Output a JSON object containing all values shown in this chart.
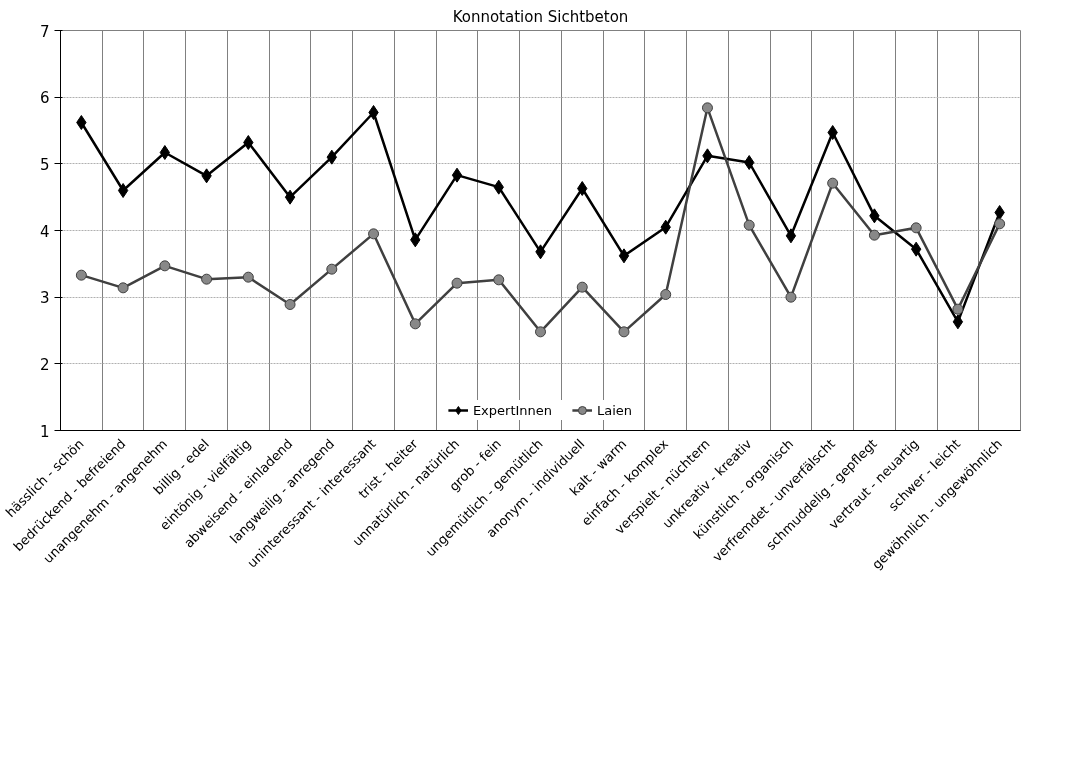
{
  "chart_data": {
    "type": "line",
    "title": "Konnotation Sichtbeton",
    "categories": [
      "hässlich - schön",
      "bedrückend - befreiend",
      "unangenehm - angenehm",
      "billig - edel",
      "eintönig - vielfältig",
      "abweisend - einladend",
      "langweilig - anregend",
      "uninteressant - interessant",
      "trist - heiter",
      "unnatürlich - natürlich",
      "grob - fein",
      "ungemütlich - gemütlich",
      "anonym - individuell",
      "kalt - warm",
      "einfach - komplex",
      "verspielt - nüchtern",
      "unkreativ - kreativ",
      "künstlich - organisch",
      "verfremdet - unverfälscht",
      "schmuddelig - gepflegt",
      "vertraut - neuartig",
      "schwer - leicht",
      "gewöhnlich - ungewöhnlich"
    ],
    "series": [
      {
        "name": "ExpertInnen",
        "color": "#000000",
        "marker": "diamond",
        "values": [
          5.62,
          4.6,
          5.17,
          4.82,
          5.32,
          4.5,
          5.1,
          5.77,
          3.86,
          4.83,
          4.65,
          3.68,
          4.63,
          3.62,
          4.05,
          5.12,
          5.02,
          3.92,
          5.47,
          4.22,
          3.72,
          2.63,
          4.27
        ]
      },
      {
        "name": "Laien",
        "color": "#404040",
        "marker": "circle",
        "values": [
          3.33,
          3.14,
          3.47,
          3.27,
          3.3,
          2.89,
          3.42,
          3.95,
          2.6,
          3.21,
          3.26,
          2.48,
          3.15,
          2.48,
          3.04,
          5.84,
          4.08,
          3.0,
          4.71,
          3.93,
          4.04,
          2.82,
          4.1
        ]
      }
    ],
    "ylim": [
      1,
      7
    ],
    "yticks": [
      1,
      2,
      3,
      4,
      5,
      6,
      7
    ],
    "grid": true,
    "legend": "bottom",
    "line_style": "solid"
  }
}
